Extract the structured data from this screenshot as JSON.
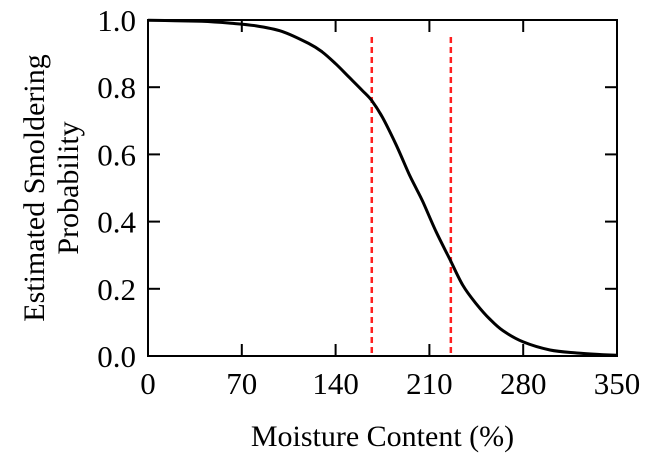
{
  "chart_data": {
    "type": "line",
    "xlabel": "Moisture Content (%)",
    "ylabel_lines": [
      "Estimated Smoldering",
      "Probability"
    ],
    "xlim": [
      0,
      350
    ],
    "ylim": [
      0,
      1
    ],
    "x_ticks": [
      0,
      70,
      140,
      210,
      280,
      350
    ],
    "x_tick_labels": [
      "0",
      "70",
      "140",
      "210",
      "280",
      "350"
    ],
    "y_ticks": [
      0,
      0.2,
      0.4,
      0.6,
      0.8,
      1.0
    ],
    "y_tick_labels": [
      "0.0",
      "0.2",
      "0.4",
      "0.6",
      "0.8",
      "1.0"
    ],
    "grid": false,
    "series": [
      {
        "color": "#000000",
        "x": [
          0,
          20,
          40,
          60,
          80,
          100,
          120,
          130,
          140,
          150,
          160,
          167,
          175,
          185,
          195,
          200,
          205,
          215,
          225,
          235,
          245,
          255,
          265,
          280,
          300,
          320,
          340,
          350
        ],
        "y": [
          0.999,
          0.998,
          0.996,
          0.991,
          0.983,
          0.966,
          0.93,
          0.905,
          0.87,
          0.83,
          0.79,
          0.76,
          0.71,
          0.63,
          0.54,
          0.5,
          0.46,
          0.37,
          0.29,
          0.21,
          0.155,
          0.11,
          0.075,
          0.042,
          0.018,
          0.009,
          0.004,
          0.002
        ]
      }
    ],
    "reference_lines": [
      {
        "axis": "x",
        "value": 167,
        "color": "#ff2020",
        "style": "dashed"
      },
      {
        "axis": "x",
        "value": 226,
        "color": "#ff2020",
        "style": "dashed"
      }
    ]
  }
}
